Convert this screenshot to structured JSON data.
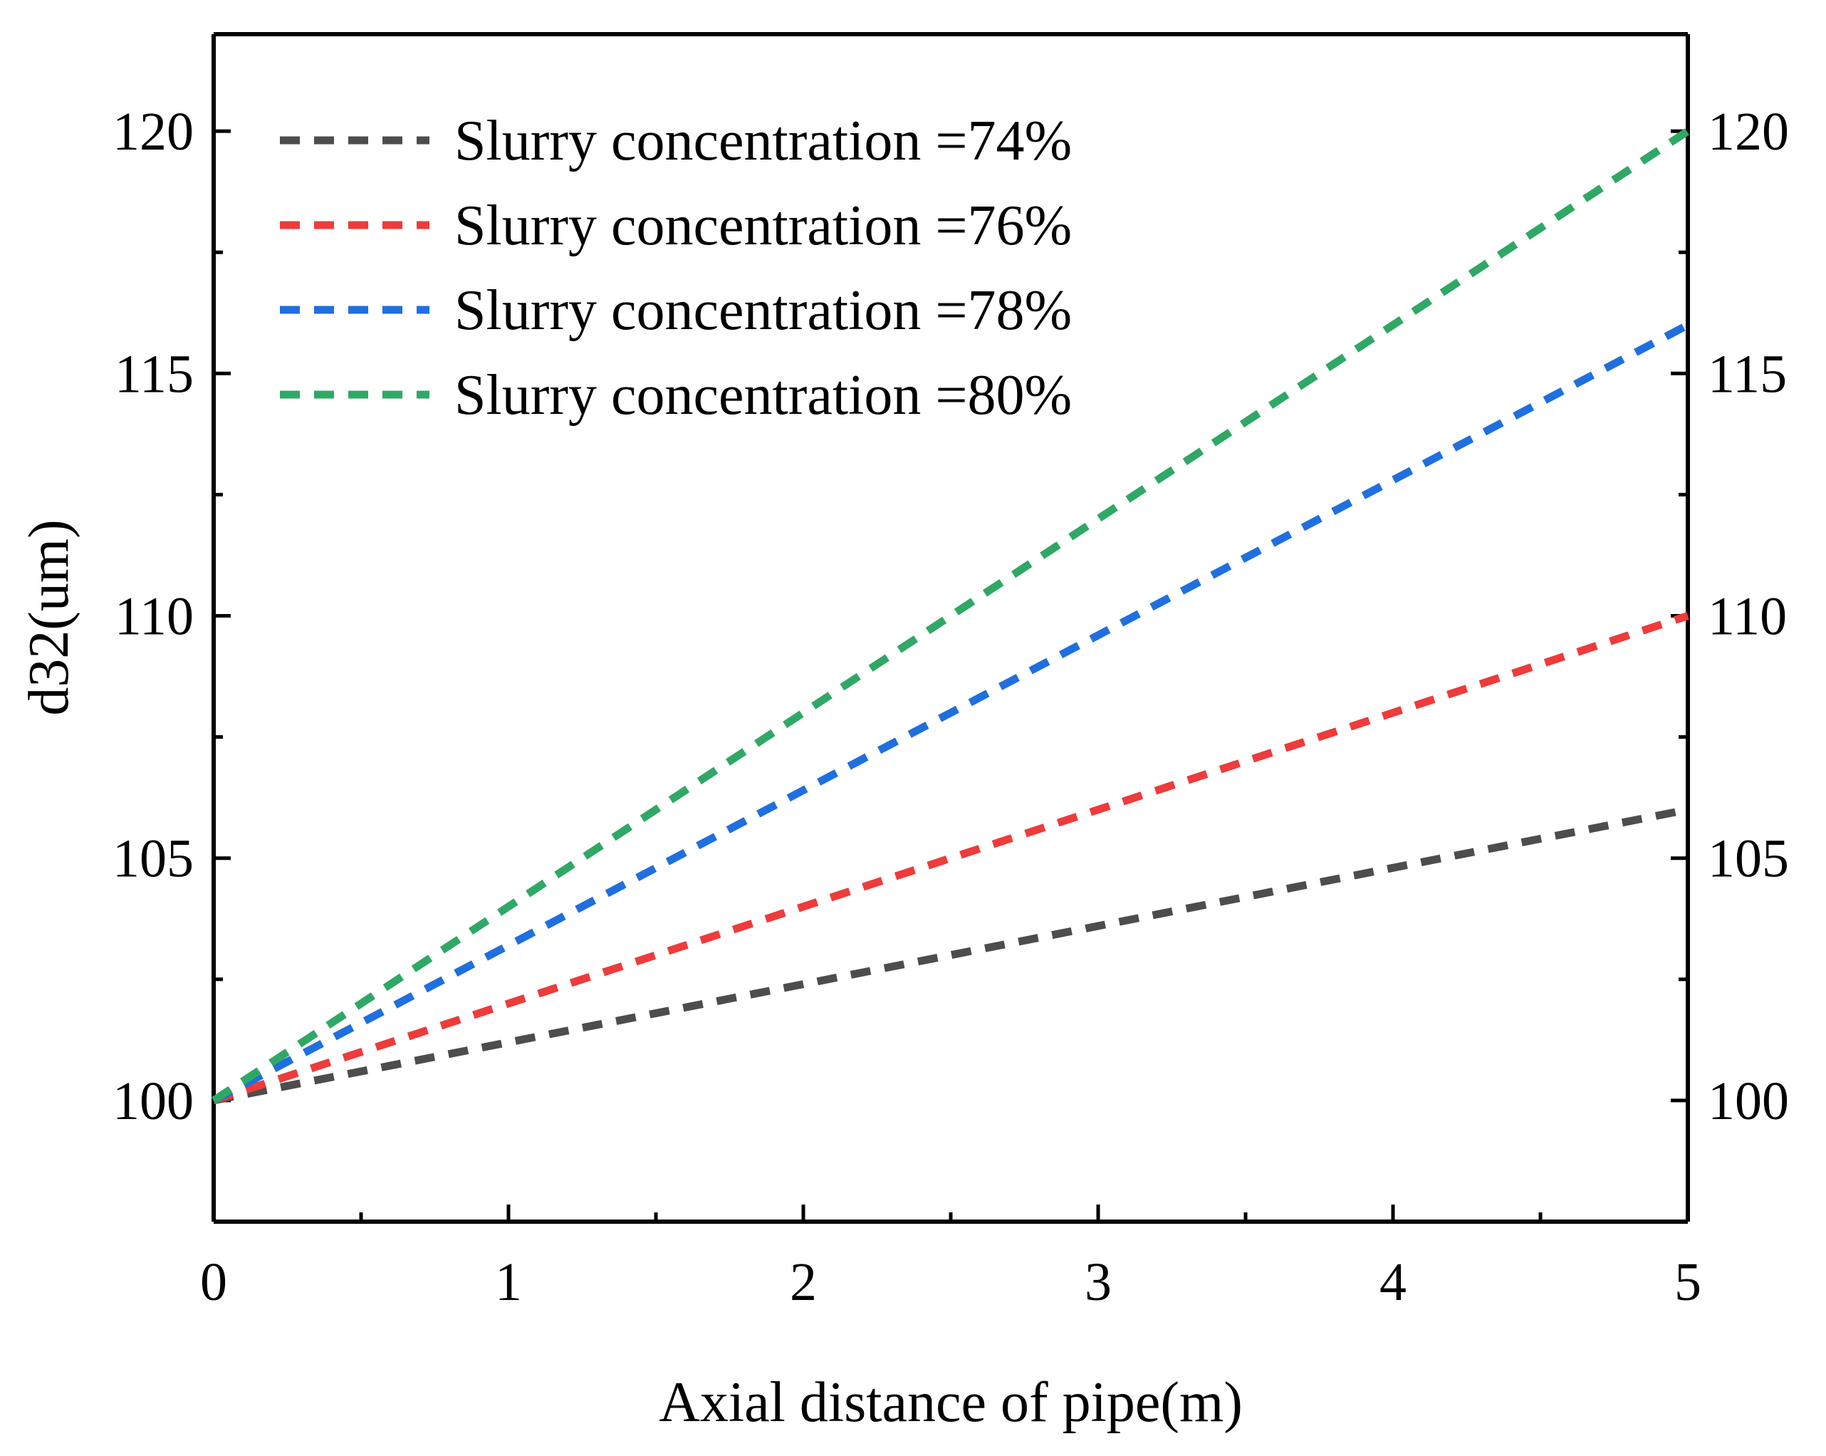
{
  "chart_data": {
    "type": "line",
    "title": "",
    "xlabel": "Axial distance of pipe(m)",
    "ylabel": "d32(um)",
    "xlim": [
      0,
      5
    ],
    "ylim": [
      97.5,
      122
    ],
    "x_ticks": [
      0,
      1,
      2,
      3,
      4,
      5
    ],
    "x_tick_labels": [
      "0",
      "1",
      "2",
      "3",
      "4",
      "5"
    ],
    "x_minor_ticks": [
      0.5,
      1.5,
      2.5,
      3.5,
      4.5
    ],
    "y_ticks": [
      100,
      105,
      110,
      115,
      120
    ],
    "y_tick_labels": [
      "100",
      "105",
      "110",
      "115",
      "120"
    ],
    "y_minor_ticks": [
      102.5,
      107.5,
      112.5,
      117.5
    ],
    "right_axis_labels": true,
    "grid": false,
    "legend_position": "top-left",
    "series": [
      {
        "name": "Slurry concentration =74%",
        "color": "#4d4d4d",
        "x": [
          0,
          0.5,
          1,
          1.5,
          2,
          2.5,
          3,
          3.5,
          4,
          4.5,
          5
        ],
        "values": [
          100,
          100.6,
          101.2,
          101.8,
          102.4,
          103.0,
          103.6,
          104.2,
          104.8,
          105.4,
          106.0
        ]
      },
      {
        "name": "Slurry concentration =76%",
        "color": "#ee3b3b",
        "x": [
          0,
          0.5,
          1,
          1.5,
          2,
          2.5,
          3,
          3.5,
          4,
          4.5,
          5
        ],
        "values": [
          100,
          101.0,
          102.0,
          103.0,
          104.0,
          105.0,
          106.0,
          107.0,
          108.0,
          109.0,
          110.0
        ]
      },
      {
        "name": "Slurry concentration =78%",
        "color": "#1f6fe0",
        "x": [
          0,
          0.5,
          1,
          1.5,
          2,
          2.5,
          3,
          3.5,
          4,
          4.5,
          5
        ],
        "values": [
          100,
          101.6,
          103.2,
          104.8,
          106.4,
          108.0,
          109.6,
          111.2,
          112.8,
          114.4,
          116.0
        ]
      },
      {
        "name": "Slurry concentration =80%",
        "color": "#2fa866",
        "x": [
          0,
          0.5,
          1,
          1.5,
          2,
          2.5,
          3,
          3.5,
          4,
          4.5,
          5
        ],
        "values": [
          100,
          102.0,
          104.0,
          106.0,
          108.0,
          110.0,
          112.0,
          114.0,
          116.0,
          118.0,
          120.0
        ]
      }
    ]
  }
}
